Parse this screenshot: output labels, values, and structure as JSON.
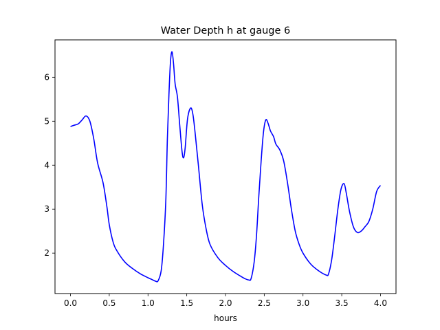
{
  "chart_data": {
    "type": "line",
    "title": "Water Depth h at gauge 6",
    "xlabel": "hours",
    "ylabel": "",
    "xlim": [
      -0.2,
      4.2
    ],
    "ylim": [
      1.08,
      6.85
    ],
    "x_ticks": [
      0.0,
      0.5,
      1.0,
      1.5,
      2.0,
      2.5,
      3.0,
      3.5,
      4.0
    ],
    "x_tick_labels": [
      "0.0",
      "0.5",
      "1.0",
      "1.5",
      "2.0",
      "2.5",
      "3.0",
      "3.5",
      "4.0"
    ],
    "y_ticks": [
      2,
      3,
      4,
      5,
      6
    ],
    "y_tick_labels": [
      "2",
      "3",
      "4",
      "5",
      "6"
    ],
    "grid": false,
    "series": [
      {
        "color": "#0000ff",
        "points": [
          [
            0.0,
            4.88
          ],
          [
            0.05,
            4.91
          ],
          [
            0.1,
            4.94
          ],
          [
            0.15,
            5.03
          ],
          [
            0.2,
            5.12
          ],
          [
            0.25,
            5.0
          ],
          [
            0.3,
            4.6
          ],
          [
            0.35,
            4.05
          ],
          [
            0.42,
            3.6
          ],
          [
            0.47,
            3.05
          ],
          [
            0.5,
            2.65
          ],
          [
            0.55,
            2.25
          ],
          [
            0.6,
            2.05
          ],
          [
            0.7,
            1.8
          ],
          [
            0.8,
            1.65
          ],
          [
            0.9,
            1.53
          ],
          [
            1.0,
            1.44
          ],
          [
            1.05,
            1.4
          ],
          [
            1.1,
            1.36
          ],
          [
            1.13,
            1.37
          ],
          [
            1.17,
            1.6
          ],
          [
            1.2,
            2.2
          ],
          [
            1.23,
            3.2
          ],
          [
            1.25,
            4.6
          ],
          [
            1.27,
            5.6
          ],
          [
            1.29,
            6.35
          ],
          [
            1.31,
            6.58
          ],
          [
            1.33,
            6.3
          ],
          [
            1.35,
            5.85
          ],
          [
            1.38,
            5.55
          ],
          [
            1.41,
            4.9
          ],
          [
            1.44,
            4.3
          ],
          [
            1.46,
            4.17
          ],
          [
            1.48,
            4.4
          ],
          [
            1.51,
            5.05
          ],
          [
            1.55,
            5.3
          ],
          [
            1.58,
            5.15
          ],
          [
            1.61,
            4.7
          ],
          [
            1.65,
            4.0
          ],
          [
            1.7,
            3.1
          ],
          [
            1.75,
            2.55
          ],
          [
            1.8,
            2.2
          ],
          [
            1.9,
            1.9
          ],
          [
            2.0,
            1.72
          ],
          [
            2.1,
            1.58
          ],
          [
            2.2,
            1.47
          ],
          [
            2.25,
            1.42
          ],
          [
            2.3,
            1.39
          ],
          [
            2.33,
            1.42
          ],
          [
            2.37,
            1.8
          ],
          [
            2.4,
            2.4
          ],
          [
            2.43,
            3.3
          ],
          [
            2.46,
            4.1
          ],
          [
            2.49,
            4.75
          ],
          [
            2.52,
            5.03
          ],
          [
            2.55,
            4.95
          ],
          [
            2.58,
            4.78
          ],
          [
            2.62,
            4.65
          ],
          [
            2.65,
            4.48
          ],
          [
            2.7,
            4.35
          ],
          [
            2.75,
            4.1
          ],
          [
            2.8,
            3.6
          ],
          [
            2.85,
            3.0
          ],
          [
            2.9,
            2.5
          ],
          [
            2.95,
            2.2
          ],
          [
            3.0,
            2.0
          ],
          [
            3.1,
            1.75
          ],
          [
            3.2,
            1.6
          ],
          [
            3.3,
            1.5
          ],
          [
            3.33,
            1.53
          ],
          [
            3.37,
            1.85
          ],
          [
            3.41,
            2.4
          ],
          [
            3.45,
            3.0
          ],
          [
            3.49,
            3.45
          ],
          [
            3.53,
            3.58
          ],
          [
            3.56,
            3.35
          ],
          [
            3.6,
            2.95
          ],
          [
            3.65,
            2.6
          ],
          [
            3.7,
            2.47
          ],
          [
            3.75,
            2.5
          ],
          [
            3.8,
            2.6
          ],
          [
            3.85,
            2.72
          ],
          [
            3.9,
            3.0
          ],
          [
            3.95,
            3.4
          ],
          [
            4.0,
            3.54
          ]
        ]
      }
    ]
  }
}
